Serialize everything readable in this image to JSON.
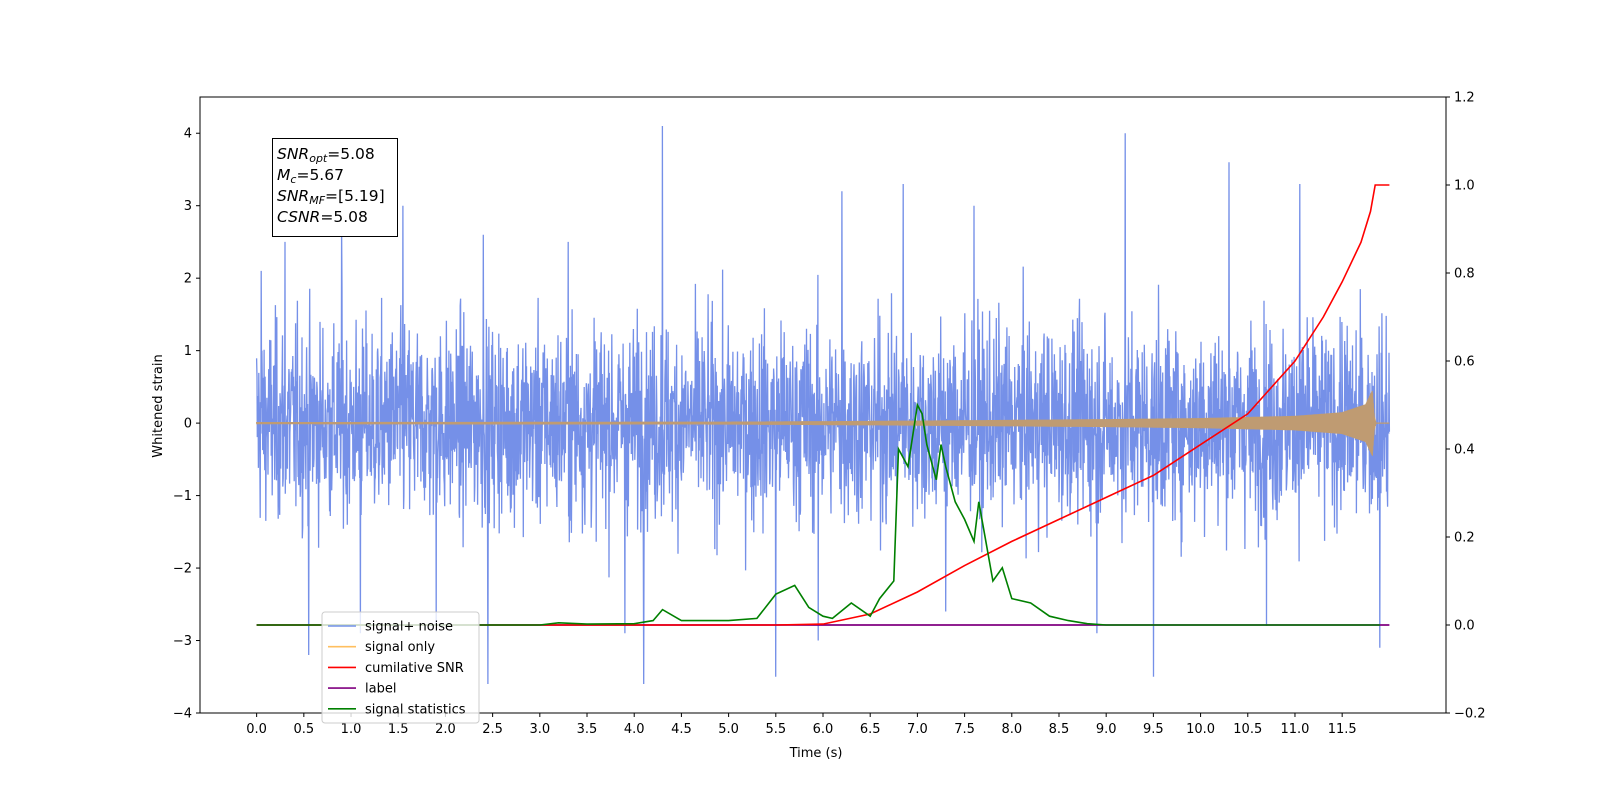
{
  "annotation": {
    "snr_opt": "5.08",
    "mc": "5.67",
    "snr_mf": "[5.19]",
    "csnr": "5.08"
  },
  "chart_data": {
    "type": "line",
    "xlabel": "Time (s)",
    "ylabel": "Whitened strain",
    "xlim": [
      -0.6,
      12.6
    ],
    "ylim": [
      -4,
      4.5
    ],
    "y2lim": [
      -0.2,
      1.2
    ],
    "x_ticks": [
      "0.0",
      "0.5",
      "1.0",
      "1.5",
      "2.0",
      "2.5",
      "3.0",
      "3.5",
      "4.0",
      "4.5",
      "5.0",
      "5.5",
      "6.0",
      "6.5",
      "7.0",
      "7.5",
      "8.0",
      "8.5",
      "9.0",
      "9.5",
      "10.0",
      "10.5",
      "11.0",
      "11.5"
    ],
    "y_ticks": [
      "−4",
      "−3",
      "−2",
      "−1",
      "0",
      "1",
      "2",
      "3",
      "4"
    ],
    "y2_ticks": [
      "−0.2",
      "0.0",
      "0.2",
      "0.4",
      "0.6",
      "0.8",
      "1.0",
      "1.2"
    ],
    "grid": false,
    "legend_position": "lower-left",
    "colors": {
      "signal_noise": "#7590e8",
      "signal_only": "#bf9b72",
      "signal_only_legend": "#ffbf5f",
      "cumulative_snr": "#ff0000",
      "label": "#800080",
      "signal_statistics": "#008000"
    },
    "series": [
      {
        "name": "signal+ noise",
        "axis": "left",
        "x_range": [
          0,
          12
        ],
        "envelope": "gaussian whitened noise, roughly ±2.5 with spikes to ±4",
        "peaks": [
          [
            0.05,
            2.1
          ],
          [
            0.3,
            2.5
          ],
          [
            0.55,
            -3.2
          ],
          [
            0.9,
            2.7
          ],
          [
            1.1,
            -2.9
          ],
          [
            1.55,
            3.0
          ],
          [
            1.9,
            -2.8
          ],
          [
            2.4,
            2.6
          ],
          [
            2.45,
            -3.6
          ],
          [
            3.3,
            2.5
          ],
          [
            3.9,
            -2.9
          ],
          [
            4.1,
            -3.6
          ],
          [
            4.3,
            4.1
          ],
          [
            5.5,
            -3.5
          ],
          [
            5.95,
            -3.0
          ],
          [
            6.2,
            3.2
          ],
          [
            6.85,
            3.3
          ],
          [
            7.3,
            -2.6
          ],
          [
            7.6,
            3.0
          ],
          [
            8.9,
            -2.9
          ],
          [
            9.2,
            4.0
          ],
          [
            9.5,
            -3.5
          ],
          [
            10.3,
            3.6
          ],
          [
            10.7,
            -2.8
          ],
          [
            11.05,
            3.3
          ],
          [
            11.9,
            -3.1
          ]
        ]
      },
      {
        "name": "signal only",
        "axis": "left",
        "chirp_envelope": {
          "x": [
            0,
            5,
            7,
            8,
            9,
            10,
            11,
            11.5,
            11.75,
            11.82,
            11.84,
            11.86,
            12
          ],
          "y": [
            0.015,
            0.02,
            0.035,
            0.045,
            0.055,
            0.07,
            0.1,
            0.15,
            0.26,
            0.45,
            0.1,
            0,
            0
          ]
        }
      },
      {
        "name": "cumilative SNR",
        "axis": "right",
        "x": [
          0,
          5.5,
          6,
          6.5,
          7,
          7.5,
          8,
          8.5,
          9,
          9.5,
          10,
          10.5,
          11,
          11.3,
          11.5,
          11.7,
          11.8,
          11.85,
          11.87,
          12
        ],
        "y": [
          0,
          0,
          0.002,
          0.025,
          0.075,
          0.135,
          0.19,
          0.24,
          0.29,
          0.34,
          0.41,
          0.48,
          0.6,
          0.7,
          0.78,
          0.87,
          0.94,
          1.0,
          1.0,
          1.0
        ]
      },
      {
        "name": "label",
        "axis": "right",
        "x": [
          0,
          12
        ],
        "y": [
          0,
          0
        ]
      },
      {
        "name": "signal statistics",
        "axis": "right",
        "x": [
          0,
          3.0,
          3.2,
          3.5,
          4.0,
          4.2,
          4.3,
          4.5,
          4.7,
          5.0,
          5.3,
          5.5,
          5.7,
          5.85,
          6.0,
          6.1,
          6.3,
          6.5,
          6.6,
          6.75,
          6.8,
          6.9,
          7.0,
          7.05,
          7.1,
          7.2,
          7.25,
          7.3,
          7.4,
          7.5,
          7.6,
          7.65,
          7.7,
          7.8,
          7.9,
          8.0,
          8.2,
          8.4,
          8.6,
          8.8,
          9.0,
          9.5,
          10.0,
          10.5,
          11.0,
          11.5,
          11.9
        ],
        "y": [
          0,
          0,
          0.005,
          0.002,
          0.003,
          0.01,
          0.035,
          0.01,
          0.01,
          0.01,
          0.015,
          0.07,
          0.09,
          0.04,
          0.02,
          0.015,
          0.05,
          0.02,
          0.06,
          0.1,
          0.4,
          0.36,
          0.5,
          0.48,
          0.41,
          0.33,
          0.41,
          0.36,
          0.28,
          0.24,
          0.19,
          0.28,
          0.22,
          0.1,
          0.13,
          0.06,
          0.05,
          0.02,
          0.01,
          0.003,
          0,
          0,
          0,
          0,
          0,
          0,
          0
        ]
      }
    ],
    "legend": [
      {
        "label": "signal+ noise",
        "color": "#7590e8"
      },
      {
        "label": "signal only",
        "color": "#ffbf5f"
      },
      {
        "label": "cumilative SNR",
        "color": "#ff0000"
      },
      {
        "label": "label",
        "color": "#800080"
      },
      {
        "label": "signal statistics",
        "color": "#008000"
      }
    ]
  }
}
